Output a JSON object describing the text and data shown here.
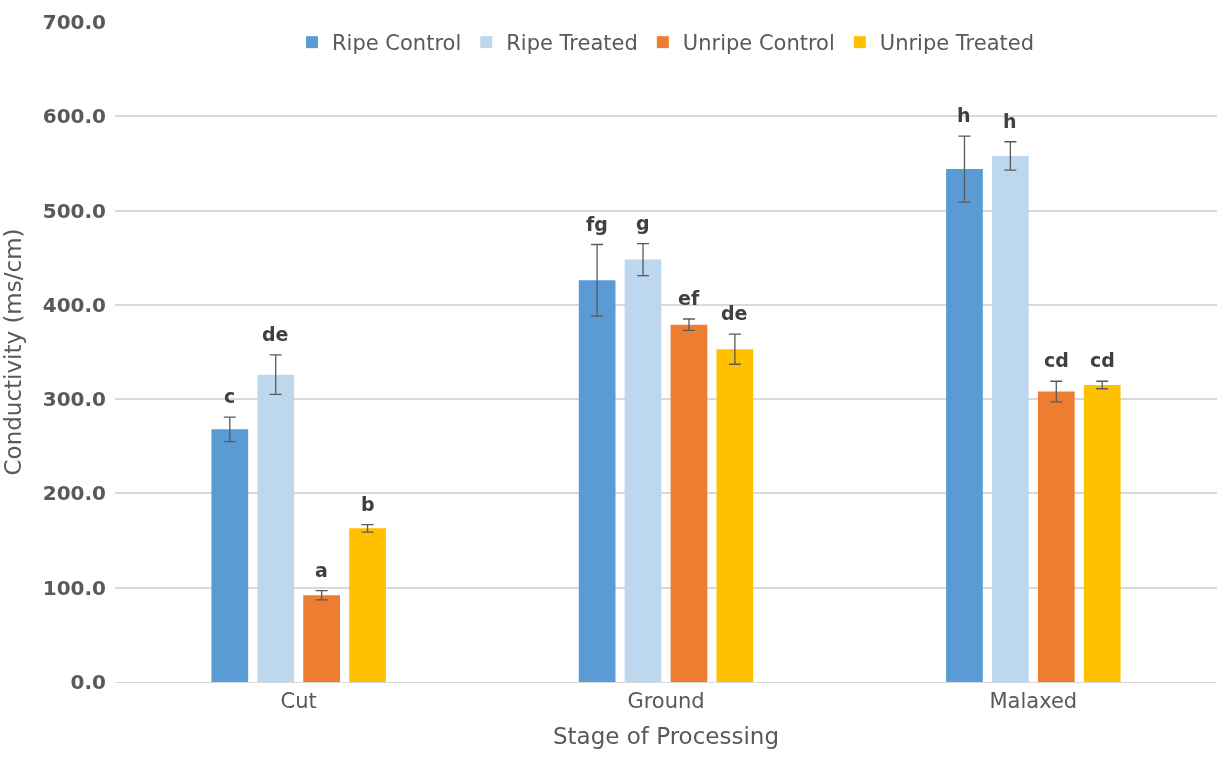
{
  "chart_data": {
    "type": "bar",
    "xlabel": "Stage of Processing",
    "ylabel": "Conductivity (ms/cm)",
    "categories": [
      "Cut",
      "Ground",
      "Malaxed"
    ],
    "series": [
      {
        "name": "Ripe Control",
        "color": "#5b9bd5",
        "values": [
          268,
          426,
          544
        ],
        "errors": [
          13,
          38,
          35
        ],
        "value_labels": [
          "c",
          "fg",
          "h"
        ]
      },
      {
        "name": "Ripe Treated",
        "color": "#bdd7ee",
        "values": [
          326,
          448,
          558
        ],
        "errors": [
          21,
          17,
          15
        ],
        "value_labels": [
          "de",
          "g",
          "h"
        ]
      },
      {
        "name": "Unripe Control",
        "color": "#ed7d31",
        "values": [
          92,
          379,
          308
        ],
        "errors": [
          5,
          6,
          11
        ],
        "value_labels": [
          "a",
          "ef",
          "cd"
        ]
      },
      {
        "name": "Unripe Treated",
        "color": "#ffc000",
        "values": [
          163,
          353,
          315
        ],
        "errors": [
          4,
          16,
          4
        ],
        "value_labels": [
          "b",
          "de",
          "cd"
        ]
      }
    ],
    "ylim": [
      0,
      700
    ],
    "yticks": [
      {
        "value": 0,
        "label": "0.0"
      },
      {
        "value": 100,
        "label": "100.0"
      },
      {
        "value": 200,
        "label": "200.0"
      },
      {
        "value": 300,
        "label": "300.0"
      },
      {
        "value": 400,
        "label": "400.0"
      },
      {
        "value": 500,
        "label": "500.0"
      },
      {
        "value": 600,
        "label": "600.0"
      },
      {
        "value": 700,
        "label": "700.0"
      }
    ],
    "grid": "y",
    "legend": "top"
  }
}
